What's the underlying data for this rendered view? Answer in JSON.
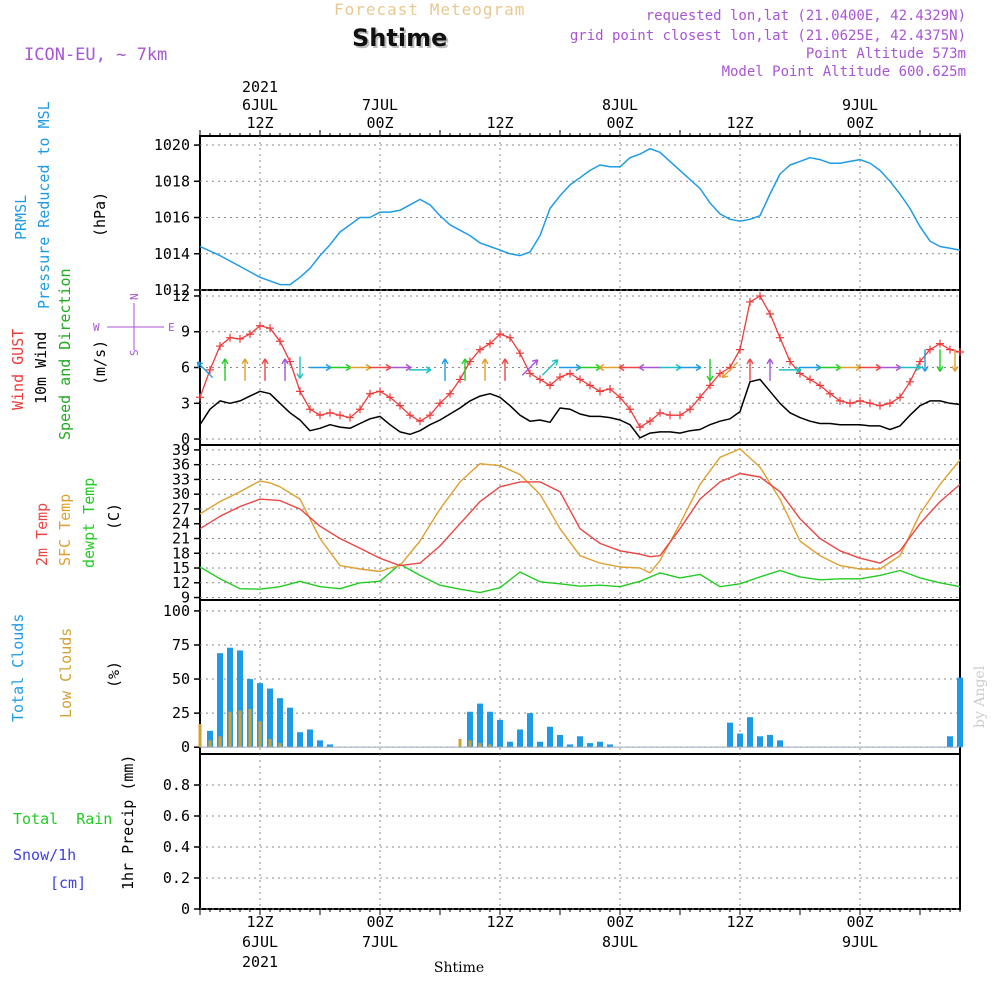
{
  "header": {
    "title_top": "Forecast Meteogram",
    "station": "Shtime",
    "model": "ICON-EU, ~ 7km",
    "requested": "requested lon,lat (21.0400E, 42.4329N)",
    "gridpoint": "grid point closest lon,lat (21.0625E, 42.4375N)",
    "point_alt": "Point Altitude 573m",
    "model_alt": "Model Point Altitude 600.625m",
    "xaxis_title": "Shtime",
    "watermark": "by Angel"
  },
  "colors": {
    "pressure": "#1e9be6",
    "gust": "#ee3b3b",
    "wind": "#000000",
    "temp2m": "#ee4444",
    "sfc": "#e0a030",
    "dewpt": "#22cc22",
    "total_cloud": "#1e9be6",
    "low_cloud": "#d4a030",
    "rain": "#22cc22",
    "snow": "#4040e0",
    "title_orange": "#e8c890",
    "purple": "#a855d6"
  },
  "labels": {
    "prmsl": "PRMSL",
    "prmsl_desc": "Pressure Reduced to MSL",
    "hpa": "(hPa)",
    "gust": "Wind GUST",
    "wind10": "10m Wind",
    "speeddir": "Speed and Direction",
    "ms": "(m/s)",
    "compass_w": "W",
    "compass_e": "E",
    "compass_n": "N",
    "compass_s": "S",
    "t2m": "2m Temp",
    "sfc": "SFC Temp",
    "dew": "dewpt Temp",
    "c": "(C)",
    "total_clouds": "Total Clouds",
    "low_clouds": "Low Clouds",
    "pct": "(%)",
    "total_rain": "Total  Rain",
    "snow": "Snow/1h",
    "cm": "[cm]",
    "precip": "1hr Precip (mm)"
  },
  "chart_data": {
    "type": "line",
    "title": "Forecast Meteogram",
    "subtitle": "Shtime",
    "x_range_hours": [
      0,
      76
    ],
    "top_time_labels": [
      {
        "hour": 6,
        "lines": [
          "2021",
          "6JUL",
          "12Z"
        ]
      },
      {
        "hour": 18,
        "lines": [
          "7JUL",
          "00Z"
        ]
      },
      {
        "hour": 30,
        "lines": [
          "12Z"
        ]
      },
      {
        "hour": 42,
        "lines": [
          "8JUL",
          "00Z"
        ]
      },
      {
        "hour": 54,
        "lines": [
          "12Z"
        ]
      },
      {
        "hour": 66,
        "lines": [
          "9JUL",
          "00Z"
        ]
      }
    ],
    "bottom_time_labels": [
      {
        "hour": 6,
        "lines": [
          "12Z",
          "6JUL",
          "2021"
        ]
      },
      {
        "hour": 18,
        "lines": [
          "00Z",
          "7JUL"
        ]
      },
      {
        "hour": 30,
        "lines": [
          "12Z"
        ]
      },
      {
        "hour": 42,
        "lines": [
          "00Z",
          "8JUL"
        ]
      },
      {
        "hour": 54,
        "lines": [
          "12Z"
        ]
      },
      {
        "hour": 66,
        "lines": [
          "00Z",
          "9JUL"
        ]
      }
    ],
    "pressure": {
      "name": "PRMSL (hPa)",
      "ylim": [
        1012,
        1020.5
      ],
      "yticks": [
        1012,
        1014,
        1016,
        1018,
        1020
      ],
      "x": [
        0,
        2,
        4,
        6,
        8,
        9,
        10,
        11,
        12,
        13,
        14,
        15,
        16,
        17,
        18,
        19,
        20,
        21,
        22,
        23,
        24,
        25,
        26,
        27,
        28,
        29,
        30,
        31,
        32,
        33,
        34,
        35,
        36,
        37,
        38,
        39,
        40,
        41,
        42,
        43,
        44,
        45,
        46,
        47,
        48,
        49,
        50,
        51,
        52,
        53,
        54,
        55,
        56,
        57,
        58,
        59,
        60,
        61,
        62,
        63,
        64,
        65,
        66,
        67,
        68,
        69,
        70,
        71,
        72,
        73,
        74,
        75,
        76
      ],
      "values": [
        1014.4,
        1013.9,
        1013.3,
        1012.7,
        1012.3,
        1012.3,
        1012.7,
        1013.2,
        1013.9,
        1014.5,
        1015.2,
        1015.6,
        1016.0,
        1016.0,
        1016.3,
        1016.3,
        1016.4,
        1016.7,
        1017.0,
        1016.7,
        1016.1,
        1015.6,
        1015.3,
        1015.0,
        1014.6,
        1014.4,
        1014.2,
        1014.0,
        1013.9,
        1014.1,
        1015.0,
        1016.5,
        1017.2,
        1017.8,
        1018.2,
        1018.6,
        1018.9,
        1018.8,
        1018.8,
        1019.3,
        1019.5,
        1019.8,
        1019.6,
        1019.1,
        1018.6,
        1018.1,
        1017.6,
        1016.8,
        1016.2,
        1015.9,
        1015.8,
        1015.9,
        1016.1,
        1017.3,
        1018.4,
        1018.9,
        1019.1,
        1019.3,
        1019.2,
        1019.0,
        1019.0,
        1019.1,
        1019.2,
        1019.0,
        1018.6,
        1018.0,
        1017.3,
        1016.5,
        1015.5,
        1014.7,
        1014.4,
        1014.3,
        1014.2
      ]
    },
    "wind": {
      "ylim": [
        -0.5,
        12.5
      ],
      "yticks": [
        0,
        3,
        6,
        9,
        12
      ],
      "gust": {
        "name": "Wind GUST (m/s)",
        "x": [
          0,
          1,
          2,
          3,
          4,
          5,
          6,
          7,
          8,
          9,
          10,
          11,
          12,
          13,
          14,
          15,
          16,
          17,
          18,
          19,
          20,
          21,
          22,
          23,
          24,
          25,
          26,
          27,
          28,
          29,
          30,
          31,
          32,
          33,
          34,
          35,
          36,
          37,
          38,
          39,
          40,
          41,
          42,
          43,
          44,
          45,
          46,
          47,
          48,
          49,
          50,
          51,
          52,
          53,
          54,
          55,
          56,
          57,
          58,
          59,
          60,
          61,
          62,
          63,
          64,
          65,
          66,
          67,
          68,
          69,
          70,
          71,
          72,
          73,
          74,
          75,
          76
        ],
        "values": [
          3.5,
          5.8,
          7.8,
          8.5,
          8.4,
          8.8,
          9.5,
          9.3,
          8.2,
          6.5,
          4.0,
          2.5,
          2.0,
          2.2,
          2.0,
          1.8,
          2.5,
          3.8,
          4.0,
          3.5,
          2.8,
          2.0,
          1.5,
          2.0,
          3.0,
          3.8,
          5.0,
          6.5,
          7.5,
          8.0,
          8.8,
          8.5,
          7.2,
          5.5,
          5.0,
          4.5,
          5.2,
          5.5,
          5.0,
          4.5,
          4.0,
          4.2,
          3.5,
          2.5,
          1.0,
          1.5,
          2.2,
          2.0,
          2.0,
          2.5,
          3.5,
          4.5,
          5.5,
          6.0,
          7.5,
          11.5,
          12.0,
          10.5,
          8.5,
          6.5,
          5.5,
          5.0,
          4.5,
          3.8,
          3.2,
          3.0,
          3.2,
          3.0,
          2.8,
          3.0,
          3.5,
          4.8,
          6.5,
          7.5,
          8.0,
          7.5,
          7.3
        ]
      },
      "speed10m": {
        "name": "10m Wind (m/s)",
        "x": [
          0,
          1,
          2,
          3,
          4,
          5,
          6,
          7,
          8,
          9,
          10,
          11,
          12,
          13,
          14,
          15,
          16,
          17,
          18,
          19,
          20,
          21,
          22,
          23,
          24,
          25,
          26,
          27,
          28,
          29,
          30,
          31,
          32,
          33,
          34,
          35,
          36,
          37,
          38,
          39,
          40,
          41,
          42,
          43,
          44,
          45,
          46,
          47,
          48,
          49,
          50,
          51,
          52,
          53,
          54,
          55,
          56,
          57,
          58,
          59,
          60,
          61,
          62,
          63,
          64,
          65,
          66,
          67,
          68,
          69,
          70,
          71,
          72,
          73,
          74,
          75,
          76
        ],
        "values": [
          1.2,
          2.5,
          3.2,
          3.0,
          3.2,
          3.6,
          4.0,
          3.8,
          3.0,
          2.2,
          1.6,
          0.7,
          0.9,
          1.2,
          1.0,
          0.9,
          1.3,
          1.7,
          1.9,
          1.2,
          0.6,
          0.4,
          0.7,
          1.2,
          1.6,
          2.1,
          2.6,
          3.2,
          3.6,
          3.8,
          3.5,
          2.8,
          2.0,
          1.5,
          1.6,
          1.4,
          2.6,
          2.5,
          2.1,
          1.9,
          1.9,
          1.8,
          1.6,
          1.2,
          0.1,
          0.5,
          0.6,
          0.6,
          0.5,
          0.7,
          0.8,
          1.2,
          1.5,
          1.7,
          2.3,
          4.8,
          5.0,
          4.0,
          3.0,
          2.2,
          1.8,
          1.5,
          1.3,
          1.3,
          1.2,
          1.2,
          1.2,
          1.1,
          1.1,
          0.8,
          1.1,
          2.0,
          2.8,
          3.2,
          3.2,
          3.0,
          2.9
        ]
      },
      "barbs": [
        {
          "x": 0.5,
          "y": 5.8,
          "dir": "NW"
        },
        {
          "x": 2.5,
          "y": 5.8,
          "dir": "N"
        },
        {
          "x": 4.5,
          "y": 5.8,
          "dir": "N"
        },
        {
          "x": 6.5,
          "y": 5.8,
          "dir": "N"
        },
        {
          "x": 8.5,
          "y": 5.8,
          "dir": "N"
        },
        {
          "x": 10,
          "y": 6.0,
          "dir": "S"
        },
        {
          "x": 12,
          "y": 6.0,
          "dir": "E"
        },
        {
          "x": 14,
          "y": 6.0,
          "dir": "E"
        },
        {
          "x": 16,
          "y": 6.0,
          "dir": "E"
        },
        {
          "x": 18,
          "y": 6.0,
          "dir": "E"
        },
        {
          "x": 20,
          "y": 6.0,
          "dir": "E"
        },
        {
          "x": 22,
          "y": 5.8,
          "dir": "E"
        },
        {
          "x": 24.5,
          "y": 5.8,
          "dir": "N"
        },
        {
          "x": 26.5,
          "y": 5.8,
          "dir": "N"
        },
        {
          "x": 28.5,
          "y": 5.8,
          "dir": "N"
        },
        {
          "x": 30.5,
          "y": 5.8,
          "dir": "N"
        },
        {
          "x": 33,
          "y": 6.0,
          "dir": "NE"
        },
        {
          "x": 35,
          "y": 6.0,
          "dir": "NE"
        },
        {
          "x": 37,
          "y": 6.0,
          "dir": "E"
        },
        {
          "x": 39,
          "y": 6.0,
          "dir": "E"
        },
        {
          "x": 41,
          "y": 6.0,
          "dir": "W"
        },
        {
          "x": 43,
          "y": 6.0,
          "dir": "W"
        },
        {
          "x": 45,
          "y": 6.0,
          "dir": "W"
        },
        {
          "x": 47,
          "y": 6.0,
          "dir": "E"
        },
        {
          "x": 49,
          "y": 6.0,
          "dir": "E"
        },
        {
          "x": 51,
          "y": 5.8,
          "dir": "S"
        },
        {
          "x": 53,
          "y": 5.8,
          "dir": "SW"
        },
        {
          "x": 55,
          "y": 5.8,
          "dir": "N"
        },
        {
          "x": 57,
          "y": 5.8,
          "dir": "N"
        },
        {
          "x": 59,
          "y": 5.8,
          "dir": "E"
        },
        {
          "x": 61,
          "y": 6.0,
          "dir": "E"
        },
        {
          "x": 63,
          "y": 6.0,
          "dir": "E"
        },
        {
          "x": 65,
          "y": 6.0,
          "dir": "E"
        },
        {
          "x": 67,
          "y": 6.0,
          "dir": "E"
        },
        {
          "x": 69,
          "y": 6.0,
          "dir": "E"
        },
        {
          "x": 71,
          "y": 6.0,
          "dir": "E"
        },
        {
          "x": 72.5,
          "y": 6.6,
          "dir": "S"
        },
        {
          "x": 74,
          "y": 6.6,
          "dir": "S"
        },
        {
          "x": 75.5,
          "y": 6.6,
          "dir": "S"
        }
      ]
    },
    "temperature": {
      "ylim": [
        8.5,
        40
      ],
      "yticks": [
        9,
        12,
        15,
        18,
        21,
        24,
        27,
        30,
        33,
        36,
        39
      ],
      "t2m": {
        "name": "2m Temp (C)",
        "x": [
          0,
          2,
          4,
          6,
          8,
          10,
          12,
          14,
          16,
          18,
          20,
          22,
          24,
          26,
          28,
          30,
          32,
          34,
          36,
          38,
          40,
          42,
          44,
          45,
          46,
          48,
          50,
          52,
          54,
          56,
          58,
          60,
          62,
          64,
          66,
          68,
          70,
          72,
          74,
          76
        ],
        "values": [
          23,
          25.5,
          27.5,
          29,
          28.7,
          27,
          23.5,
          21,
          19,
          17,
          15.5,
          16,
          19.5,
          24,
          28.5,
          31.5,
          32.5,
          32.5,
          30.5,
          23,
          20,
          18.5,
          17.8,
          17.3,
          17.5,
          23,
          29,
          32.5,
          34.2,
          33.5,
          30.5,
          25,
          21,
          18.5,
          17,
          16,
          18.5,
          24,
          28.5,
          32
        ]
      },
      "sfc": {
        "name": "SFC Temp (C)",
        "x": [
          0,
          2,
          4,
          6,
          7,
          8,
          10,
          12,
          14,
          16,
          18,
          19,
          20,
          22,
          24,
          26,
          28,
          30,
          32,
          34,
          36,
          38,
          40,
          42,
          44,
          45,
          46,
          48,
          50,
          52,
          54,
          56,
          58,
          60,
          62,
          64,
          66,
          68,
          70,
          72,
          74,
          76
        ],
        "values": [
          26,
          28.5,
          30.5,
          32.7,
          32.3,
          31.5,
          29,
          21,
          15.5,
          14.8,
          14.3,
          15,
          15.5,
          20.5,
          27,
          32.5,
          36.2,
          35.8,
          34,
          30,
          23,
          17.5,
          16,
          15.2,
          15,
          14,
          16.5,
          24,
          32,
          37.5,
          39.2,
          35.5,
          29,
          20.5,
          17.5,
          15.5,
          14.8,
          14.8,
          17.5,
          26,
          32,
          37
        ]
      },
      "dewpt": {
        "name": "dewpt Temp (C)",
        "x": [
          0,
          2,
          4,
          6,
          8,
          10,
          12,
          14,
          16,
          18,
          20,
          22,
          24,
          26,
          28,
          30,
          32,
          34,
          36,
          38,
          40,
          42,
          44,
          46,
          48,
          50,
          52,
          54,
          56,
          58,
          60,
          62,
          64,
          66,
          68,
          70,
          72,
          74,
          76
        ],
        "values": [
          15.2,
          12.8,
          10.8,
          10.7,
          11.2,
          12.3,
          11.2,
          10.8,
          12,
          12.3,
          15.8,
          13.5,
          11.5,
          10.7,
          10,
          11,
          14.2,
          12.2,
          11.8,
          11.3,
          11.5,
          11.2,
          12.3,
          14,
          13,
          13.7,
          11.2,
          11.8,
          13.2,
          14.5,
          13.2,
          12.6,
          12.8,
          12.8,
          13.5,
          14.5,
          13,
          12,
          11.2
        ]
      }
    },
    "clouds": {
      "ylim": [
        -5,
        108
      ],
      "yticks": [
        0,
        25,
        50,
        75,
        100
      ],
      "total": {
        "name": "Total Clouds (%)",
        "x": [
          1,
          2,
          3,
          4,
          5,
          6,
          7,
          8,
          9,
          10,
          11,
          12,
          13,
          27,
          28,
          29,
          30,
          31,
          32,
          33,
          34,
          35,
          36,
          37,
          38,
          39,
          40,
          41,
          53,
          54,
          55,
          56,
          57,
          58,
          75,
          76
        ],
        "values": [
          12,
          69,
          73,
          71,
          50,
          47,
          43,
          36,
          29,
          11,
          13,
          5,
          2,
          26,
          32,
          26,
          20,
          4,
          13,
          25,
          4,
          15,
          9,
          2,
          8,
          3,
          4,
          2,
          18,
          10,
          22,
          8,
          9,
          5,
          8,
          51
        ]
      },
      "low": {
        "name": "Low Clouds (%)",
        "x": [
          0,
          1,
          2,
          3,
          4,
          5,
          6,
          7,
          8,
          26,
          27,
          28,
          29
        ],
        "values": [
          17,
          5,
          8,
          26,
          27,
          28,
          19,
          6,
          3,
          6,
          5,
          3,
          2
        ]
      }
    },
    "precip": {
      "name": "1hr Precip (mm)",
      "ylim": [
        0,
        1.0
      ],
      "yticks": [
        0,
        0.2,
        0.4,
        0.6,
        0.8
      ],
      "ytick_labels": [
        "0",
        "0.2",
        "0.4",
        "0.6",
        "0.8"
      ],
      "rain_values": [],
      "snow_values": []
    }
  }
}
